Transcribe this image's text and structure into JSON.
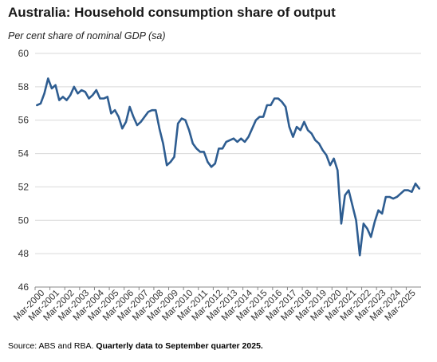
{
  "title": "Australia: Household consumption share of output",
  "footer": {
    "source": "Source: ABS and RBA.",
    "note": "Quarterly data to September quarter 2025."
  },
  "chart_data": {
    "type": "line",
    "title": "Australia: Household consumption share of output",
    "ylabel": "Per cent share of nominal GDP (sa)",
    "xlabel": "",
    "ylim": [
      46,
      60
    ],
    "yticks": [
      46,
      48,
      50,
      52,
      54,
      56,
      58,
      60
    ],
    "xticks": [
      "Mar-2000",
      "Mar-2001",
      "Mar-2002",
      "Mar-2003",
      "Mar-2004",
      "Mar-2005",
      "Mar-2006",
      "Mar-2007",
      "Mar-2008",
      "Mar-2009",
      "Mar-2010",
      "Mar-2011",
      "Mar-2012",
      "Mar-2013",
      "Mar-2014",
      "Mar-2015",
      "Mar-2016",
      "Mar-2017",
      "Mar-2018",
      "Mar-2019",
      "Mar-2020",
      "Mar-2021",
      "Mar-2022",
      "Mar-2023",
      "Mar-2024",
      "Mar-2025"
    ],
    "grid": true,
    "line_color": "#2e5d91",
    "series": [
      {
        "values": [
          56.9,
          57.0,
          57.6,
          58.5,
          57.9,
          58.1,
          57.2,
          57.4,
          57.2,
          57.5,
          58.0,
          57.6,
          57.8,
          57.7,
          57.3,
          57.5,
          57.8,
          57.3,
          57.3,
          57.4,
          56.4,
          56.6,
          56.2,
          55.5,
          55.9,
          56.8,
          56.2,
          55.7,
          55.9,
          56.2,
          56.5,
          56.6,
          56.6,
          55.5,
          54.6,
          53.3,
          53.5,
          53.8,
          55.8,
          56.1,
          56.0,
          55.4,
          54.6,
          54.3,
          54.1,
          54.1,
          53.5,
          53.2,
          53.4,
          54.3,
          54.3,
          54.7,
          54.8,
          54.9,
          54.7,
          54.9,
          54.7,
          55.0,
          55.5,
          56.0,
          56.2,
          56.2,
          56.9,
          56.9,
          57.3,
          57.3,
          57.1,
          56.8,
          55.6,
          55.0,
          55.6,
          55.4,
          55.9,
          55.4,
          55.2,
          54.8,
          54.6,
          54.2,
          53.9,
          53.3,
          53.7,
          53.0,
          49.8,
          51.5,
          51.8,
          50.9,
          50.0,
          47.9,
          49.8,
          49.5,
          49.0,
          49.9,
          50.6,
          50.4,
          51.4,
          51.4,
          51.3,
          51.4,
          51.6,
          51.8,
          51.8,
          51.7,
          52.2,
          51.9
        ]
      }
    ]
  }
}
